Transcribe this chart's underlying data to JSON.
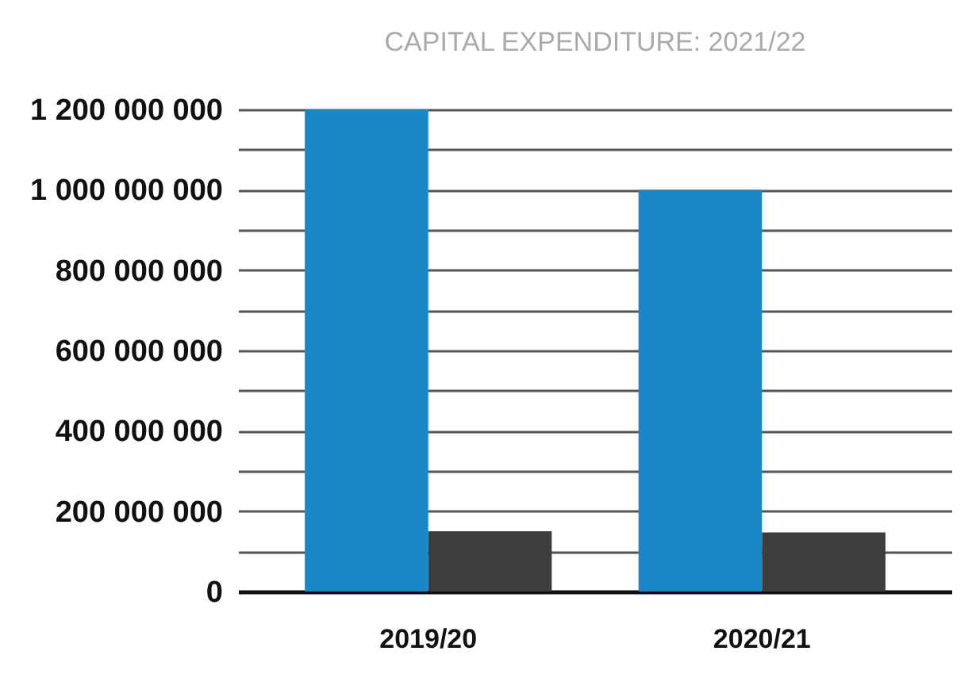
{
  "chart_data": {
    "type": "bar",
    "title": "CAPITAL EXPENDITURE: 2021/22",
    "categories": [
      "2019/20",
      "2020/21"
    ],
    "series": [
      {
        "color": "#1a87c9",
        "values": [
          1200000000,
          1000000000
        ]
      },
      {
        "color": "#3d3d3c",
        "values": [
          150000000,
          147000000
        ]
      }
    ],
    "ylim": [
      0,
      1200000000
    ],
    "yticks": [
      {
        "value": 0,
        "label": "0"
      },
      {
        "value": 100000000,
        "label": null
      },
      {
        "value": 200000000,
        "label": "200 000 000"
      },
      {
        "value": 300000000,
        "label": null
      },
      {
        "value": 400000000,
        "label": "400 000 000"
      },
      {
        "value": 500000000,
        "label": null
      },
      {
        "value": 600000000,
        "label": "600 000 000"
      },
      {
        "value": 700000000,
        "label": null
      },
      {
        "value": 800000000,
        "label": "800 000 000"
      },
      {
        "value": 900000000,
        "label": null
      },
      {
        "value": 1000000000,
        "label": "1 000 000 000"
      },
      {
        "value": 1100000000,
        "label": null
      },
      {
        "value": 1200000000,
        "label": "1 200 000 000"
      }
    ],
    "grid": true
  }
}
